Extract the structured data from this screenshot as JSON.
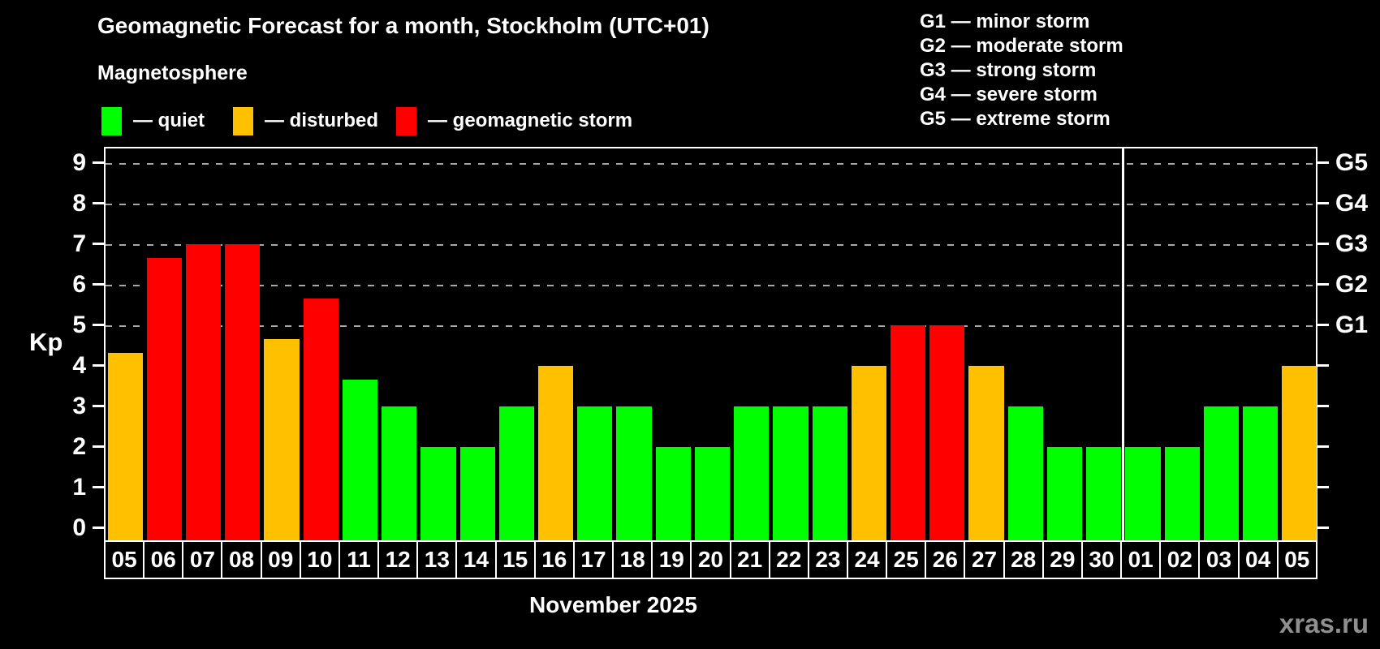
{
  "header": {
    "title": "Geomagnetic Forecast for a month, Stockholm (UTC+01)",
    "subtitle": "Magnetosphere"
  },
  "legend": {
    "items": [
      {
        "key": "quiet",
        "label": "— quiet",
        "color": "#00ff00"
      },
      {
        "key": "disturbed",
        "label": "— disturbed",
        "color": "#ffc000"
      },
      {
        "key": "storm",
        "label": "— geomagnetic storm",
        "color": "#ff0000"
      }
    ]
  },
  "g_legend": {
    "items": [
      "G1 — minor storm",
      "G2 — moderate storm",
      "G3 — strong storm",
      "G4 — severe storm",
      "G5 — extreme storm"
    ]
  },
  "chart_data": {
    "type": "bar",
    "title": "Geomagnetic Forecast for a month, Stockholm (UTC+01)",
    "subtitle": "Magnetosphere",
    "ylabel": "Kp",
    "xlabel": "November 2025",
    "ylim": [
      0,
      9.4
    ],
    "yticks": [
      0,
      1,
      2,
      3,
      4,
      5,
      6,
      7,
      8,
      9
    ],
    "gridlines_at": [
      5,
      6,
      7,
      8,
      9
    ],
    "grid": "dashed-horizontal",
    "legend_position": "top",
    "right_axis_labels": [
      {
        "kp": 5,
        "label": "G1"
      },
      {
        "kp": 6,
        "label": "G2"
      },
      {
        "kp": 7,
        "label": "G3"
      },
      {
        "kp": 8,
        "label": "G4"
      },
      {
        "kp": 9,
        "label": "G5"
      }
    ],
    "categories": [
      "05",
      "06",
      "07",
      "08",
      "09",
      "10",
      "11",
      "12",
      "13",
      "14",
      "15",
      "16",
      "17",
      "18",
      "19",
      "20",
      "21",
      "22",
      "23",
      "24",
      "25",
      "26",
      "27",
      "28",
      "29",
      "30",
      "01",
      "02",
      "03",
      "04",
      "05"
    ],
    "values": [
      4.33,
      6.67,
      7,
      7,
      4.67,
      5.67,
      3.67,
      3,
      2,
      2,
      3,
      4,
      3,
      3,
      2,
      2,
      3,
      3,
      3,
      4,
      5,
      5,
      4,
      3,
      2,
      2,
      2,
      2,
      3,
      3,
      4
    ],
    "statuses": [
      "disturbed",
      "storm",
      "storm",
      "storm",
      "disturbed",
      "storm",
      "quiet",
      "quiet",
      "quiet",
      "quiet",
      "quiet",
      "disturbed",
      "quiet",
      "quiet",
      "quiet",
      "quiet",
      "quiet",
      "quiet",
      "quiet",
      "disturbed",
      "storm",
      "storm",
      "disturbed",
      "quiet",
      "quiet",
      "quiet",
      "quiet",
      "quiet",
      "quiet",
      "quiet",
      "disturbed"
    ],
    "status_colors": {
      "quiet": "#00ff00",
      "disturbed": "#ffc000",
      "storm": "#ff0000"
    },
    "month_separator_after_index": 25
  },
  "footer": {
    "month_label": "November 2025",
    "watermark": "xras.ru"
  }
}
